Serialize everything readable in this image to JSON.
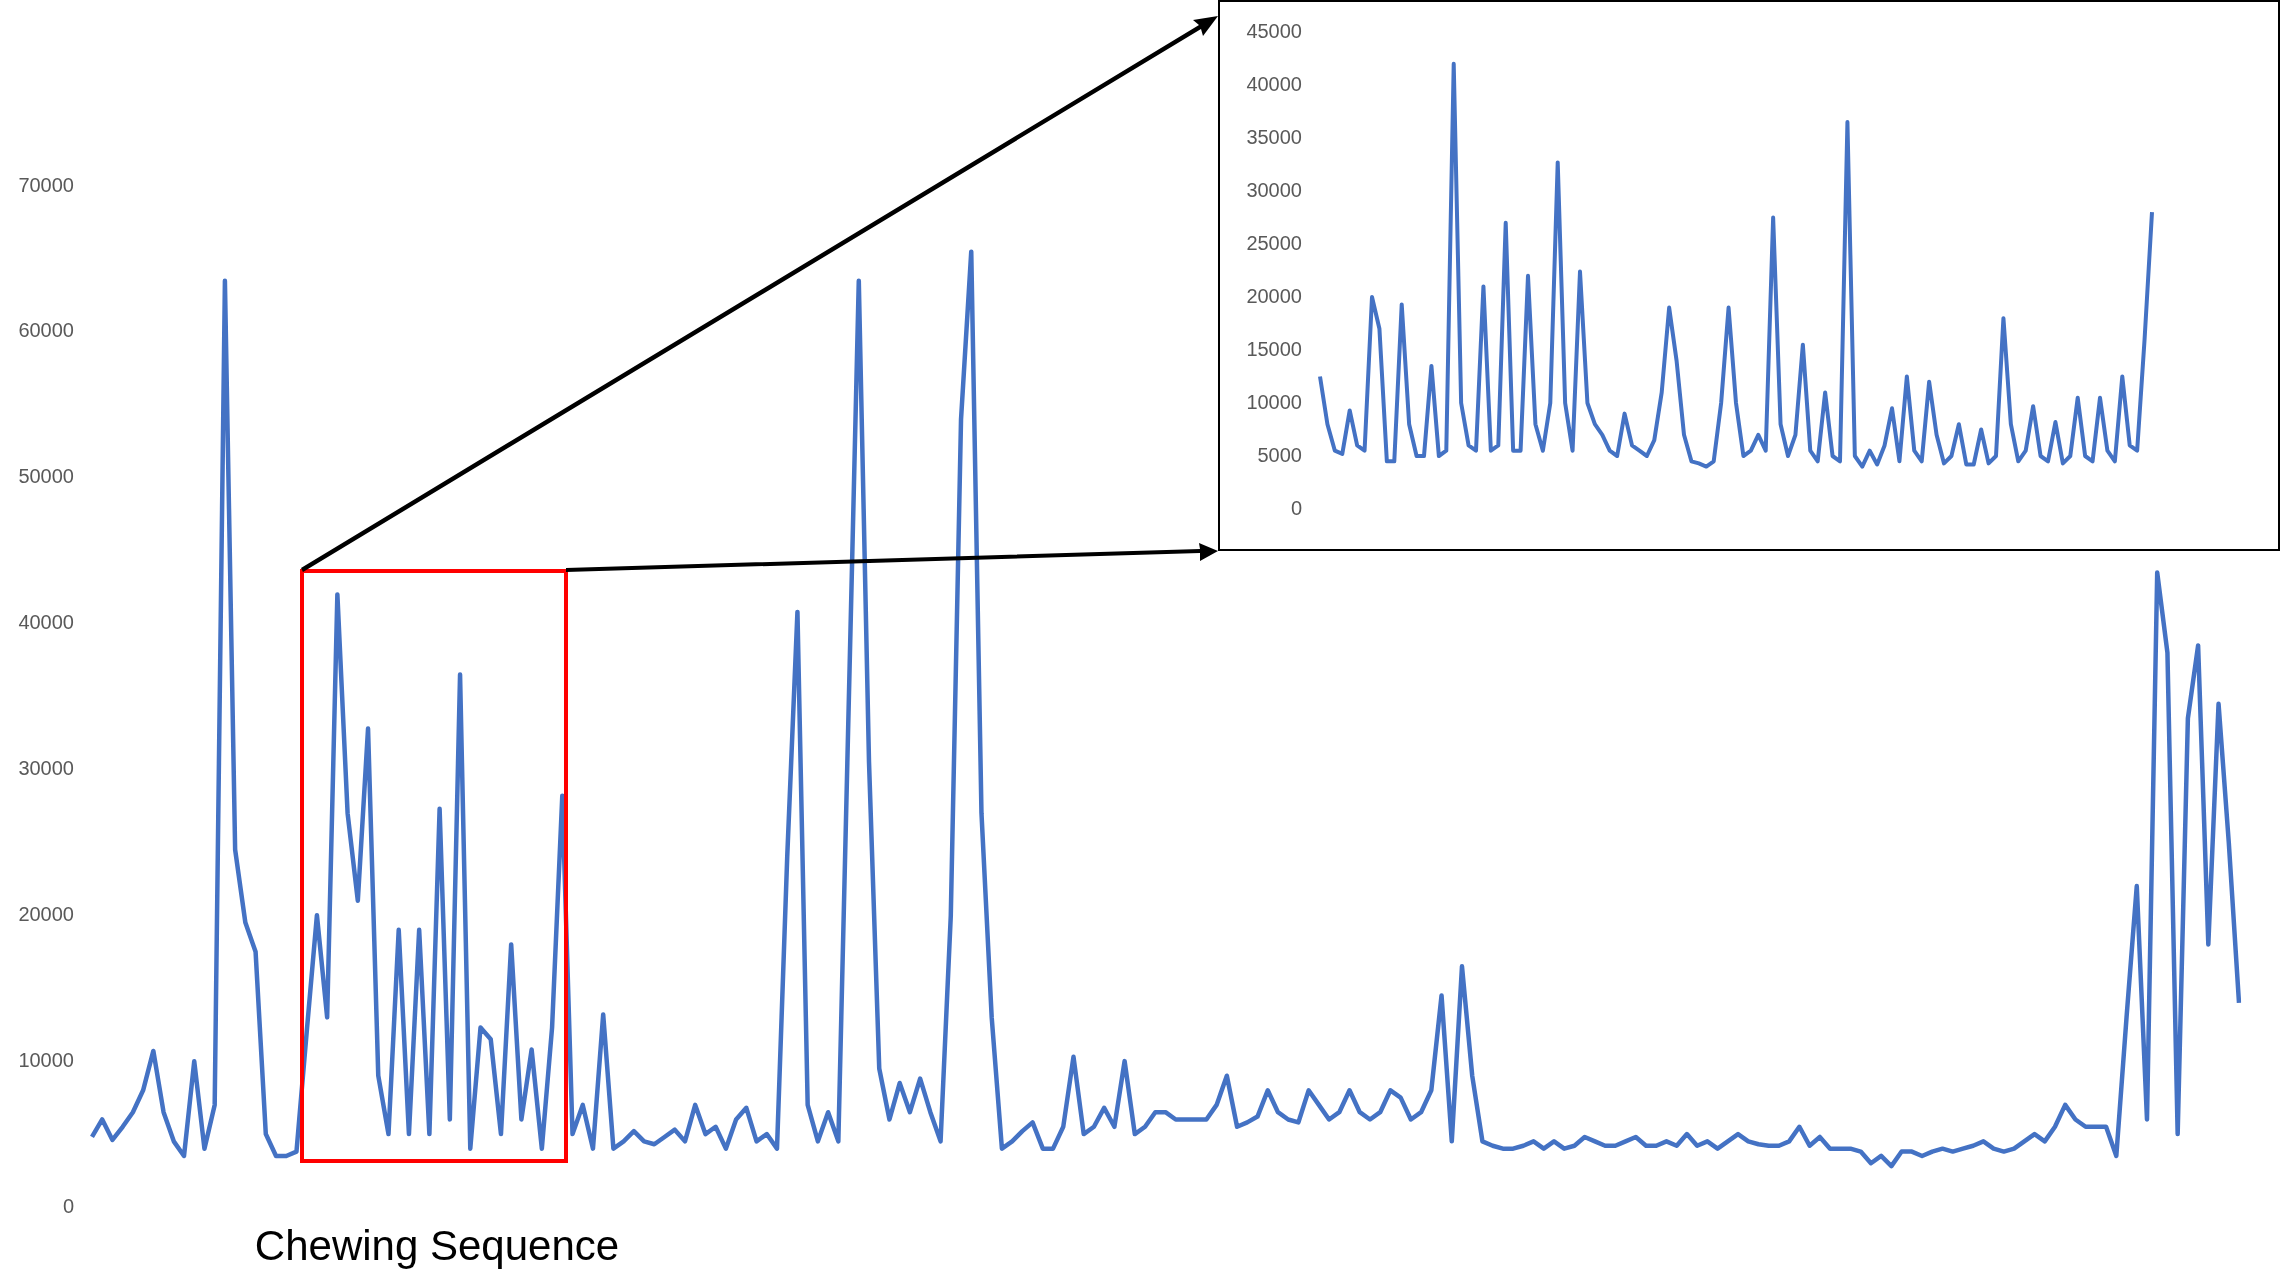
{
  "chart_data": [
    {
      "type": "line",
      "color": "#4472c4",
      "ylim": [
        0,
        70000
      ],
      "yticks": [
        0,
        10000,
        20000,
        30000,
        40000,
        50000,
        60000,
        70000
      ],
      "grid": false,
      "annotations": [
        "Chewing Sequence"
      ],
      "categories": [
        null,
        null,
        null,
        null,
        null,
        null,
        null,
        null,
        null,
        null,
        null,
        null,
        null,
        null,
        null,
        null,
        null,
        null,
        null,
        null,
        null,
        null,
        null,
        null,
        null,
        null,
        null,
        null,
        null,
        null,
        null,
        null,
        null,
        null,
        null,
        null,
        null,
        null,
        null,
        null,
        null,
        null,
        null,
        null,
        null,
        null,
        null,
        null,
        null,
        null,
        null,
        null,
        null,
        null,
        null,
        null,
        null,
        null,
        null,
        null,
        null,
        null,
        null,
        null,
        null,
        null,
        null,
        null,
        null,
        null,
        null,
        null,
        null,
        null,
        null,
        null,
        null,
        null,
        null,
        null,
        null,
        null,
        null,
        null,
        null,
        null,
        null,
        null,
        null,
        null,
        null,
        null,
        null,
        null,
        null,
        null,
        null,
        null,
        null,
        null,
        null,
        null,
        null,
        null,
        null,
        null,
        null,
        null,
        null,
        null,
        null,
        null,
        null,
        null,
        null,
        null,
        null,
        null,
        null,
        null,
        null,
        null,
        null,
        null,
        null,
        null,
        null,
        null,
        null,
        null,
        null,
        null,
        null,
        null,
        null,
        null,
        null,
        null,
        null,
        null,
        null,
        null,
        null,
        null,
        null,
        null,
        null,
        null,
        null,
        null,
        null,
        null,
        null,
        null,
        null,
        null,
        null,
        null,
        null,
        null,
        null,
        null,
        null,
        null,
        null,
        null,
        null,
        null,
        null,
        null,
        null,
        null,
        null,
        null,
        null,
        null,
        null,
        null,
        null,
        null,
        null,
        null,
        null,
        null,
        null,
        null,
        null,
        null,
        null,
        null,
        null,
        null,
        null,
        null,
        null,
        null,
        null,
        null,
        null,
        null,
        null,
        null,
        null,
        null,
        null,
        null,
        null,
        null,
        null,
        null,
        null
      ],
      "values": [
        4800,
        6000,
        4600,
        5500,
        6500,
        8000,
        10700,
        6500,
        4500,
        3500,
        10000,
        4000,
        7000,
        63500,
        24500,
        19500,
        17500,
        5000,
        3500,
        3500,
        3800,
        12000,
        20000,
        13000,
        42000,
        27000,
        21000,
        32800,
        9000,
        5000,
        19000,
        5000,
        19000,
        5000,
        27300,
        6000,
        36500,
        4000,
        12300,
        11500,
        5000,
        18000,
        6000,
        10800,
        4000,
        12300,
        28200,
        5000,
        7000,
        4000,
        13200,
        4000,
        4500,
        5200,
        4500,
        4300,
        4800,
        5300,
        4500,
        7000,
        5000,
        5500,
        4000,
        6000,
        6800,
        4500,
        5000,
        4000,
        24000,
        40800,
        7000,
        4500,
        6500,
        4500,
        34000,
        63500,
        30500,
        9500,
        6000,
        8500,
        6500,
        8800,
        6500,
        4500,
        20000,
        54000,
        65500,
        27000,
        13000,
        4000,
        4500,
        5200,
        5800,
        4000,
        4000,
        5500,
        10300,
        5000,
        5500,
        6800,
        5500,
        10000,
        5000,
        5500,
        6500,
        6500,
        6000,
        6000,
        6000,
        6000,
        7000,
        9000,
        5500,
        5800,
        6200,
        8000,
        6500,
        6000,
        5800,
        8000,
        7000,
        6000,
        6500,
        8000,
        6500,
        6000,
        6500,
        8000,
        7500,
        6000,
        6500,
        8000,
        14500,
        4500,
        16500,
        9000,
        4500,
        4200,
        4000,
        4000,
        4200,
        4500,
        4000,
        4500,
        4000,
        4200,
        4800,
        4500,
        4200,
        4200,
        4500,
        4800,
        4200,
        4200,
        4500,
        4200,
        5000,
        4200,
        4500,
        4000,
        4500,
        5000,
        4500,
        4300,
        4200,
        4200,
        4500,
        5500,
        4200,
        4800,
        4000,
        4000,
        4000,
        3800,
        3000,
        3500,
        2800,
        3800,
        3800,
        3500,
        3800,
        4000,
        3800,
        4000,
        4200,
        4500,
        4000,
        3800,
        4000,
        4500,
        5000,
        4500,
        5500,
        7000,
        6000,
        5500,
        5500,
        5500,
        3500,
        13000,
        22000,
        6000,
        43500,
        38000,
        5000,
        33500,
        38500,
        18000,
        34500,
        25000,
        14000
      ]
    },
    {
      "type": "line",
      "color": "#4472c4",
      "ylim": [
        0,
        45000
      ],
      "yticks": [
        0,
        5000,
        10000,
        15000,
        20000,
        25000,
        30000,
        35000,
        40000,
        45000
      ],
      "grid": false,
      "categories": [
        null,
        null,
        null,
        null,
        null,
        null,
        null,
        null,
        null,
        null,
        null,
        null,
        null,
        null,
        null,
        null,
        null,
        null,
        null,
        null,
        null,
        null,
        null,
        null,
        null,
        null,
        null,
        null,
        null,
        null,
        null,
        null,
        null,
        null,
        null,
        null,
        null,
        null,
        null,
        null,
        null,
        null,
        null,
        null,
        null,
        null,
        null,
        null,
        null,
        null,
        null,
        null,
        null,
        null,
        null,
        null,
        null,
        null,
        null,
        null,
        null,
        null,
        null,
        null,
        null,
        null,
        null,
        null,
        null,
        null,
        null,
        null,
        null,
        null,
        null,
        null,
        null,
        null,
        null,
        null,
        null,
        null,
        null,
        null,
        null,
        null,
        null,
        null,
        null,
        null,
        null,
        null,
        null,
        null,
        null,
        null,
        null,
        null,
        null,
        null,
        null,
        null,
        null,
        null,
        null,
        null,
        null,
        null,
        null,
        null,
        null,
        null,
        null
      ],
      "values": [
        12500,
        8000,
        5500,
        5200,
        9300,
        6000,
        5500,
        20000,
        17000,
        4500,
        4500,
        19300,
        8000,
        5000,
        5000,
        13500,
        5000,
        5500,
        42000,
        10000,
        6000,
        5500,
        21000,
        5500,
        6000,
        27000,
        5500,
        5500,
        22000,
        8000,
        5500,
        10000,
        32700,
        10000,
        5500,
        22400,
        10000,
        8000,
        7000,
        5500,
        5000,
        9000,
        6000,
        5500,
        5000,
        6500,
        11000,
        19000,
        14000,
        7000,
        4500,
        4300,
        4000,
        4500,
        10000,
        19000,
        10000,
        5000,
        5500,
        7000,
        5500,
        27500,
        8000,
        5000,
        7000,
        15500,
        5500,
        4500,
        11000,
        5000,
        4500,
        36500,
        5000,
        4000,
        5500,
        4200,
        6000,
        9500,
        4500,
        12500,
        5500,
        4500,
        12000,
        7000,
        4300,
        5000,
        8000,
        4200,
        4200,
        7500,
        4300,
        5000,
        18000,
        8000,
        4500,
        5500,
        9700,
        5000,
        4500,
        8200,
        4300,
        5000,
        10500,
        5000,
        4500,
        10500,
        5500,
        4500,
        12500,
        6000,
        5500,
        16000,
        28000
      ]
    }
  ]
}
